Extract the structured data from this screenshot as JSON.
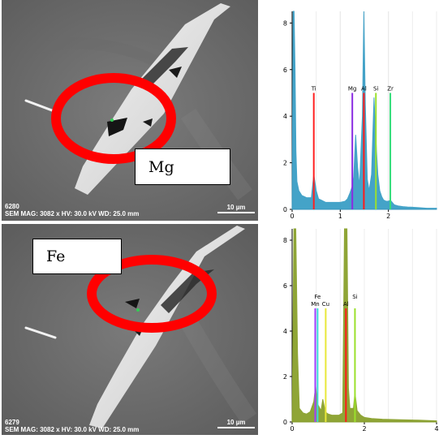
{
  "panels": [
    {
      "sem": {
        "label": "Mg",
        "image_id": "6280",
        "params": "SEM MAG: 3082 x  HV: 30.0 kV  WD: 25.0 mm",
        "scale": "10 µm"
      }
    },
    {
      "sem": {
        "label": "Fe",
        "image_id": "6279",
        "params": "SEM MAG: 3082 x  HV: 30.0 kV  WD: 25.0 mm",
        "scale": "10 µm"
      }
    }
  ],
  "colors": {
    "highlight_ring": "#ff0000",
    "spectrum_top": "#3a9fc6",
    "spectrum_bottom": "#8aa12c",
    "Ti": "#ff2020",
    "Mg": "#8a2be2",
    "Al": "#ff1a1a",
    "Si": "#9be02c",
    "Zr": "#33dd7a",
    "Mn": "#a040ff",
    "Fe": "#38d9d9",
    "Cu": "#e8e83a"
  },
  "chart_data": [
    {
      "type": "area",
      "xlim": [
        0,
        3
      ],
      "ylim": [
        0,
        8.5
      ],
      "xticks": [
        0,
        1,
        2
      ],
      "yticks": [
        0,
        2,
        4,
        6,
        8
      ],
      "grid": true,
      "series": [
        {
          "x": [
            0,
            0.02,
            0.04,
            0.06,
            0.08,
            0.1,
            0.14,
            0.2,
            0.3,
            0.4,
            0.45,
            0.5,
            0.55,
            0.6,
            0.7,
            0.8,
            0.9,
            1.0,
            1.1,
            1.15,
            1.2,
            1.25,
            1.28,
            1.32,
            1.36,
            1.4,
            1.43,
            1.46,
            1.49,
            1.52,
            1.56,
            1.6,
            1.65,
            1.7,
            1.74,
            1.78,
            1.82,
            1.86,
            1.9,
            1.95,
            2.0,
            2.04,
            2.08,
            2.12,
            2.2,
            2.3,
            2.4,
            2.6,
            2.8,
            3.0
          ],
          "y": [
            0,
            8.5,
            8.5,
            6.0,
            2.5,
            1.2,
            0.8,
            0.6,
            0.5,
            0.5,
            1.5,
            0.8,
            0.45,
            0.4,
            0.3,
            0.3,
            0.3,
            0.3,
            0.35,
            0.45,
            0.7,
            1.0,
            1.4,
            3.2,
            1.8,
            1.0,
            2.5,
            4.0,
            8.5,
            4.5,
            1.3,
            0.8,
            1.5,
            4.8,
            3.0,
            1.5,
            0.8,
            0.55,
            0.4,
            0.35,
            0.35,
            0.4,
            0.3,
            0.2,
            0.15,
            0.12,
            0.1,
            0.08,
            0.05,
            0.05
          ]
        }
      ],
      "element_lines": [
        {
          "element": "Ti",
          "x": 0.45,
          "y": 5.0
        },
        {
          "element": "Mg",
          "x": 1.25,
          "y": 5.0
        },
        {
          "element": "Al",
          "x": 1.49,
          "y": 5.0
        },
        {
          "element": "Si",
          "x": 1.74,
          "y": 5.0
        },
        {
          "element": "Zr",
          "x": 2.04,
          "y": 5.0
        }
      ],
      "labels": [
        "Ti",
        "Mg",
        "Al",
        "Si",
        "Zr"
      ]
    },
    {
      "type": "area",
      "xlim": [
        0,
        4
      ],
      "ylim": [
        0,
        8.5
      ],
      "xticks": [
        0,
        2,
        4
      ],
      "yticks": [
        0,
        2,
        4,
        6,
        8
      ],
      "grid": true,
      "series": [
        {
          "x": [
            0,
            0.05,
            0.1,
            0.15,
            0.2,
            0.3,
            0.4,
            0.5,
            0.6,
            0.65,
            0.7,
            0.8,
            0.85,
            0.9,
            0.95,
            1.0,
            1.1,
            1.2,
            1.3,
            1.4,
            1.45,
            1.48,
            1.52,
            1.56,
            1.6,
            1.7,
            1.74,
            1.8,
            1.9,
            2.0,
            2.2,
            2.5,
            3.0,
            3.5,
            4.0
          ],
          "y": [
            0,
            8.5,
            8.5,
            3.0,
            0.6,
            0.4,
            0.35,
            0.45,
            0.9,
            1.6,
            0.8,
            0.5,
            1.0,
            0.6,
            0.4,
            0.35,
            0.3,
            0.3,
            0.3,
            0.4,
            8.5,
            8.5,
            8.5,
            1.5,
            0.6,
            0.6,
            1.3,
            0.5,
            0.3,
            0.2,
            0.15,
            0.12,
            0.1,
            0.08,
            0.05
          ]
        }
      ],
      "element_lines": [
        {
          "element": "Mn",
          "x": 0.64,
          "y": 5.0
        },
        {
          "element": "Fe",
          "x": 0.705,
          "y": 5.0
        },
        {
          "element": "Cu",
          "x": 0.93,
          "y": 5.0
        },
        {
          "element": "Al",
          "x": 1.49,
          "y": 5.0
        },
        {
          "element": "Si",
          "x": 1.74,
          "y": 5.0
        }
      ],
      "labels": [
        "Mn",
        "Fe",
        "Cu",
        "Al",
        "Si"
      ]
    }
  ]
}
